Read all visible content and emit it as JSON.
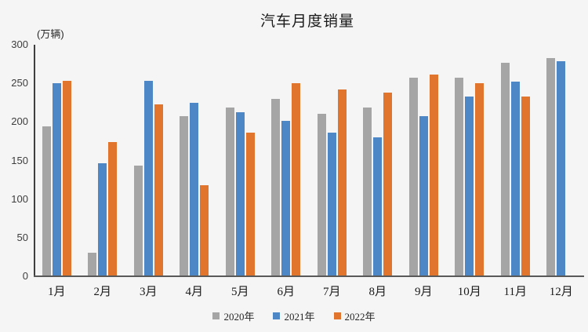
{
  "title": "汽车月度销量",
  "y_axis_unit_label": "(万辆)",
  "chart_data": {
    "type": "bar",
    "categories": [
      "1月",
      "2月",
      "3月",
      "4月",
      "5月",
      "6月",
      "7月",
      "8月",
      "9月",
      "10月",
      "11月",
      "12月"
    ],
    "series": [
      {
        "name": "2020年",
        "color": "#a5a5a5",
        "values": [
          194,
          31,
          143,
          207,
          219,
          230,
          211,
          219,
          257,
          257,
          277,
          283
        ]
      },
      {
        "name": "2021年",
        "color": "#4e87c5",
        "values": [
          250,
          146,
          253,
          225,
          213,
          201,
          186,
          180,
          207,
          233,
          252,
          279
        ]
      },
      {
        "name": "2022年",
        "color": "#e2752e",
        "values": [
          253,
          174,
          223,
          118,
          186,
          250,
          242,
          238,
          261,
          250,
          233,
          null
        ]
      }
    ],
    "title": "汽车月度销量",
    "xlabel": "",
    "ylabel": "(万辆)",
    "ylim": [
      0,
      300
    ],
    "ytick_step": 50,
    "grid": false,
    "legend_position": "bottom"
  }
}
